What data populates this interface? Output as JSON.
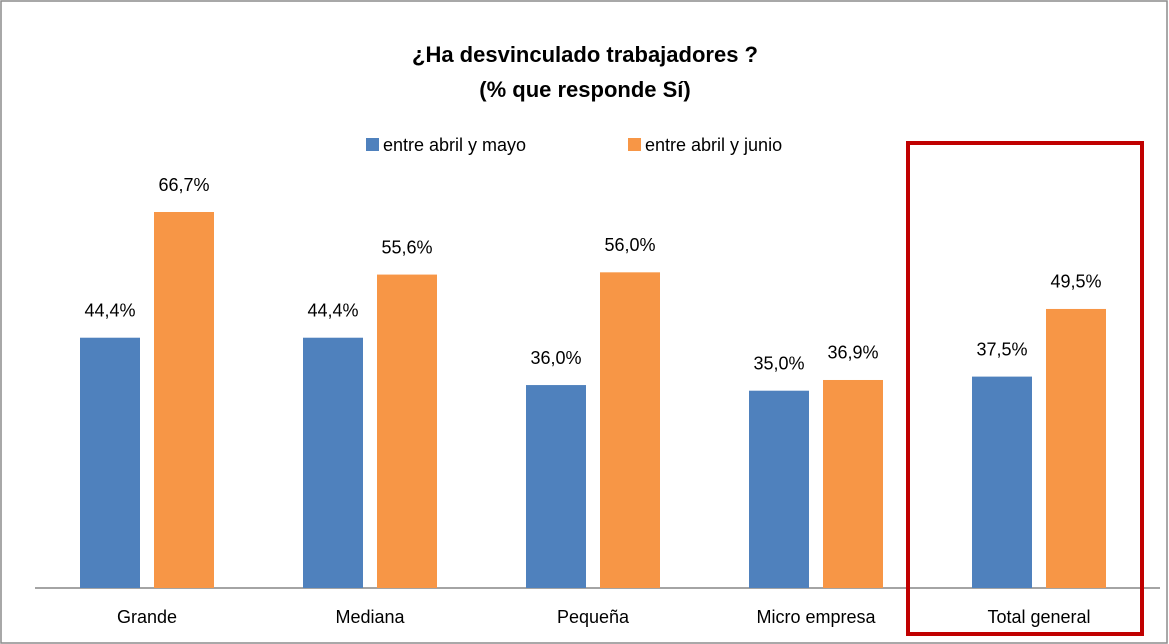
{
  "chart_data": {
    "type": "bar",
    "title": "¿Ha desvinculado trabajadores ?",
    "subtitle": "(% que responde Sí)",
    "categories": [
      "Grande",
      "Mediana",
      "Pequeña",
      "Micro empresa",
      "Total general"
    ],
    "series": [
      {
        "name": "entre abril y mayo",
        "color": "#4f81bd",
        "values": [
          44.4,
          44.4,
          36.0,
          35.0,
          37.5
        ],
        "value_labels": [
          "44,4%",
          "44,4%",
          "36,0%",
          "35,0%",
          "37,5%"
        ]
      },
      {
        "name": "entre abril y junio",
        "color": "#f79646",
        "values": [
          66.7,
          55.6,
          56.0,
          36.9,
          49.5
        ],
        "value_labels": [
          "66,7%",
          "55,6%",
          "56,0%",
          "36,9%",
          "49,5%"
        ]
      }
    ],
    "legend": "top"
  }
}
